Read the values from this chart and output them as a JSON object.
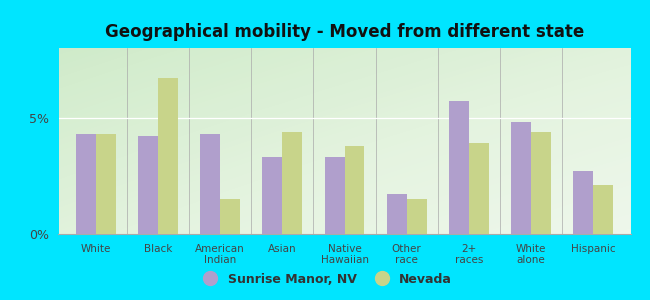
{
  "title": "Geographical mobility - Moved from different state",
  "categories": [
    "White",
    "Black",
    "American\nIndian",
    "Asian",
    "Native\nHawaiian",
    "Other\nrace",
    "2+\nraces",
    "White\nalone",
    "Hispanic"
  ],
  "sunrise_manor": [
    4.3,
    4.2,
    4.3,
    3.3,
    3.3,
    1.7,
    5.7,
    4.8,
    2.7
  ],
  "nevada": [
    4.3,
    6.7,
    1.5,
    4.4,
    3.8,
    1.5,
    3.9,
    4.4,
    2.1
  ],
  "sunrise_color": "#b09fcc",
  "nevada_color": "#c8d48a",
  "ylim": [
    0,
    8
  ],
  "yticks": [
    0,
    5
  ],
  "ytick_labels": [
    "0%",
    "5%"
  ],
  "bar_width": 0.32,
  "legend_sunrise": "Sunrise Manor, NV",
  "legend_nevada": "Nevada",
  "fig_bg": "#00e5ff",
  "plot_bg": "#e4f2e0"
}
